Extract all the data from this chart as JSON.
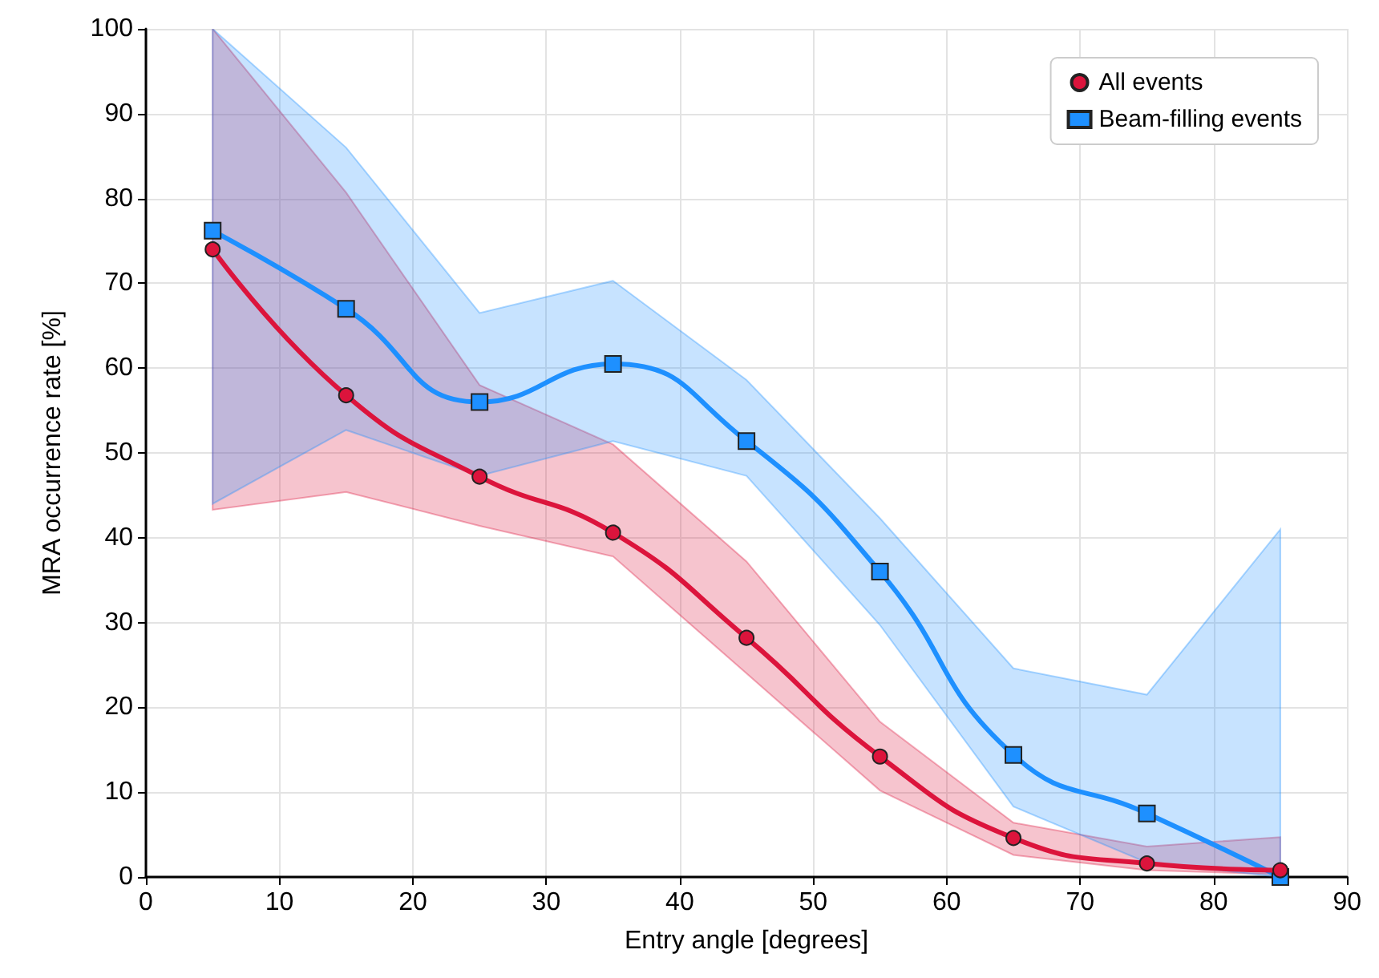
{
  "chart_data": {
    "type": "line",
    "xlabel": "Entry angle [degrees]",
    "ylabel": "MRA occurrence rate [%]",
    "x": [
      5,
      15,
      25,
      35,
      45,
      55,
      65,
      75,
      85
    ],
    "series": [
      {
        "name": "All events",
        "color": "#dc143c",
        "marker": "circle",
        "values": [
          74,
          56.8,
          47.2,
          40.6,
          28.2,
          14.2,
          4.6,
          1.6,
          0.8
        ],
        "lower": [
          43.3,
          45.4,
          41.4,
          37.8,
          24,
          10.2,
          2.6,
          0.8,
          0.3
        ],
        "upper": [
          100,
          80.7,
          58,
          51,
          37.2,
          18.3,
          6.4,
          3.6,
          4.7
        ]
      },
      {
        "name": "Beam-filling events",
        "color": "#1e90ff",
        "marker": "square",
        "values": [
          76.2,
          67,
          56,
          60.5,
          51.4,
          36,
          14.4,
          7.5,
          0
        ],
        "lower": [
          44,
          52.7,
          47.3,
          51.4,
          47.3,
          29.7,
          8.3,
          1.7,
          0
        ],
        "upper": [
          100,
          86,
          66.5,
          70.3,
          58.6,
          42.3,
          24.6,
          21.5,
          41
        ]
      }
    ],
    "xlim": [
      0,
      90
    ],
    "xticks": [
      0,
      10,
      20,
      30,
      40,
      50,
      60,
      70,
      80,
      90
    ],
    "ylim": [
      0,
      100
    ],
    "yticks": [
      0,
      10,
      20,
      30,
      40,
      50,
      60,
      70,
      80,
      90,
      100
    ],
    "grid": true,
    "legend": "top right",
    "line_style": "solid"
  }
}
